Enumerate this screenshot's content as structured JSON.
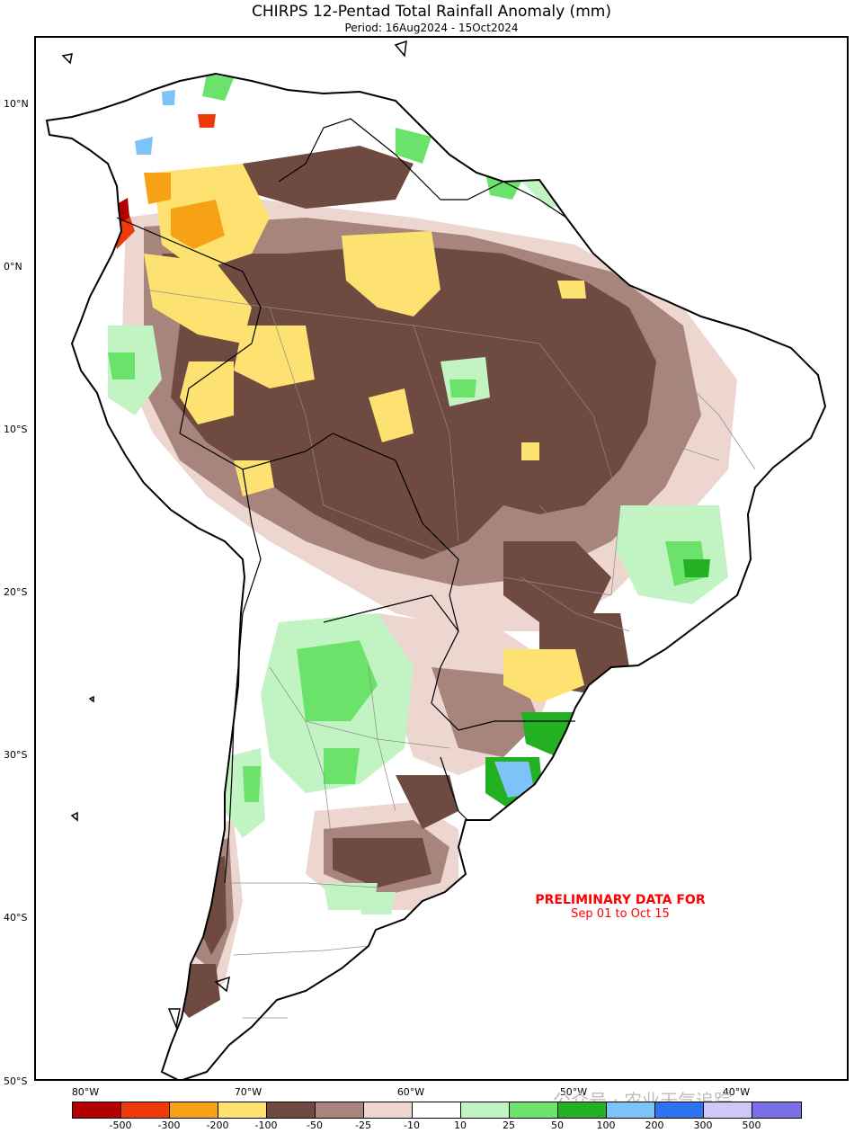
{
  "title": "CHIRPS 12-Pentad Total Rainfall Anomaly (mm)",
  "subtitle": "Period: 16Aug2024 - 15Oct2024",
  "lat_labels": [
    "10°N",
    "0°N",
    "10°S",
    "20°S",
    "30°S",
    "40°S",
    "50°S"
  ],
  "lon_labels": [
    "80°W",
    "70°W",
    "60°W",
    "50°W",
    "40°W"
  ],
  "notice": {
    "line1": "PRELIMINARY DATA FOR",
    "line2": "Sep 01 to Oct 15"
  },
  "legend": {
    "ticks": [
      "-500",
      "-300",
      "-200",
      "-100",
      "-50",
      "-25",
      "-10",
      "10",
      "25",
      "50",
      "100",
      "200",
      "300",
      "500"
    ],
    "colors": [
      "#b30000",
      "#ee3a0a",
      "#f6a214",
      "#fde271",
      "#6e4a40",
      "#a7857c",
      "#ecd6cf",
      "#ffffff",
      "#c2f3c2",
      "#6be36b",
      "#23b023",
      "#7ec3f7",
      "#2e74f0",
      "#cdc8f7",
      "#7a6fe6"
    ]
  },
  "watermark": "公众号 · 农业天气追踪",
  "colors": {
    "border": "#000000",
    "admin": "#8c8c8c",
    "highlight": "#ff0000"
  }
}
